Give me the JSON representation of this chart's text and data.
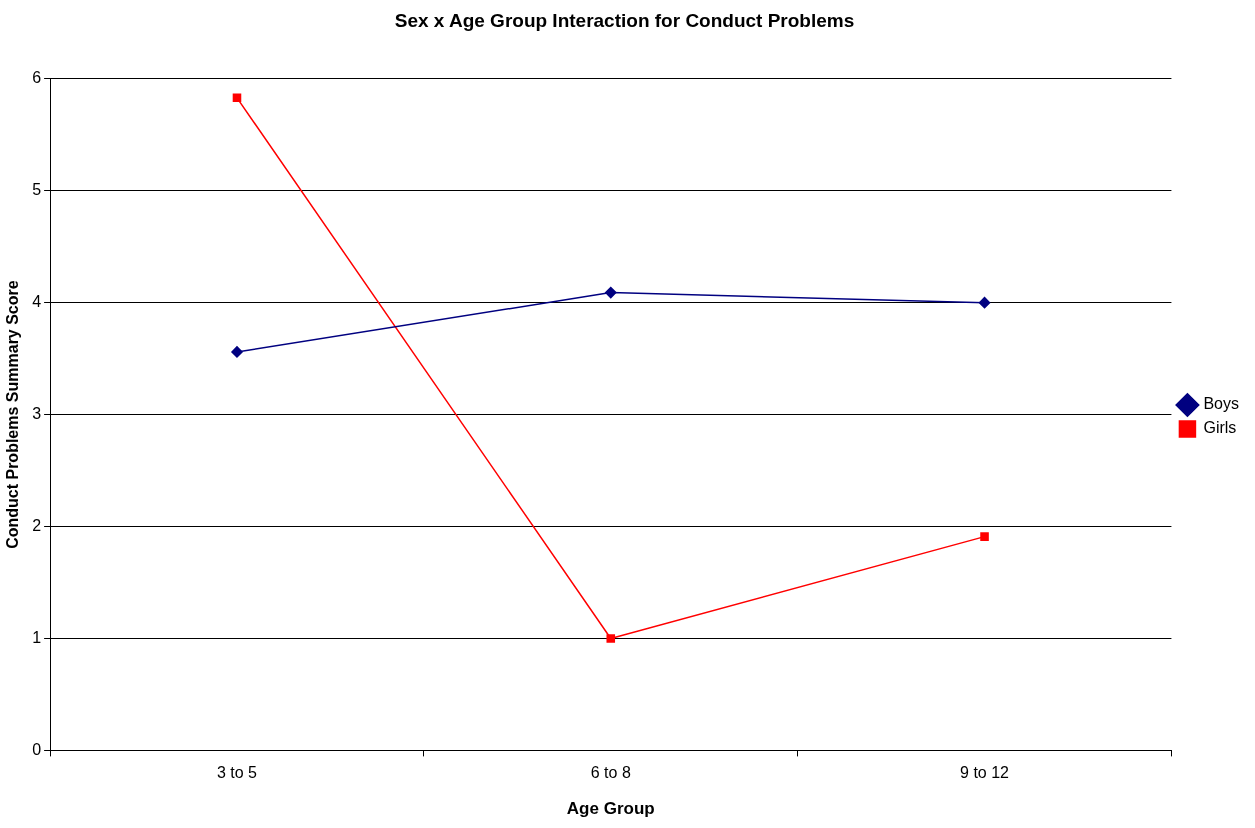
{
  "chart_data": {
    "type": "line",
    "title": "Sex x Age Group Interaction for Conduct Problems",
    "xlabel": "Age Group",
    "ylabel": "Conduct Problems Summary Score",
    "categories": [
      "3 to 5",
      "6 to 8",
      "9 to 12"
    ],
    "series": [
      {
        "name": "Boys",
        "color": "#000080",
        "marker": "diamond",
        "values": [
          3.56,
          4.09,
          4.0
        ]
      },
      {
        "name": "Girls",
        "color": "#ff0000",
        "marker": "square",
        "values": [
          5.83,
          1.0,
          1.91
        ]
      }
    ],
    "ylim": [
      0,
      6
    ],
    "yticks": [
      0,
      1,
      2,
      3,
      4,
      5,
      6
    ],
    "grid": "y",
    "legend": "right",
    "line_style": "solid"
  }
}
